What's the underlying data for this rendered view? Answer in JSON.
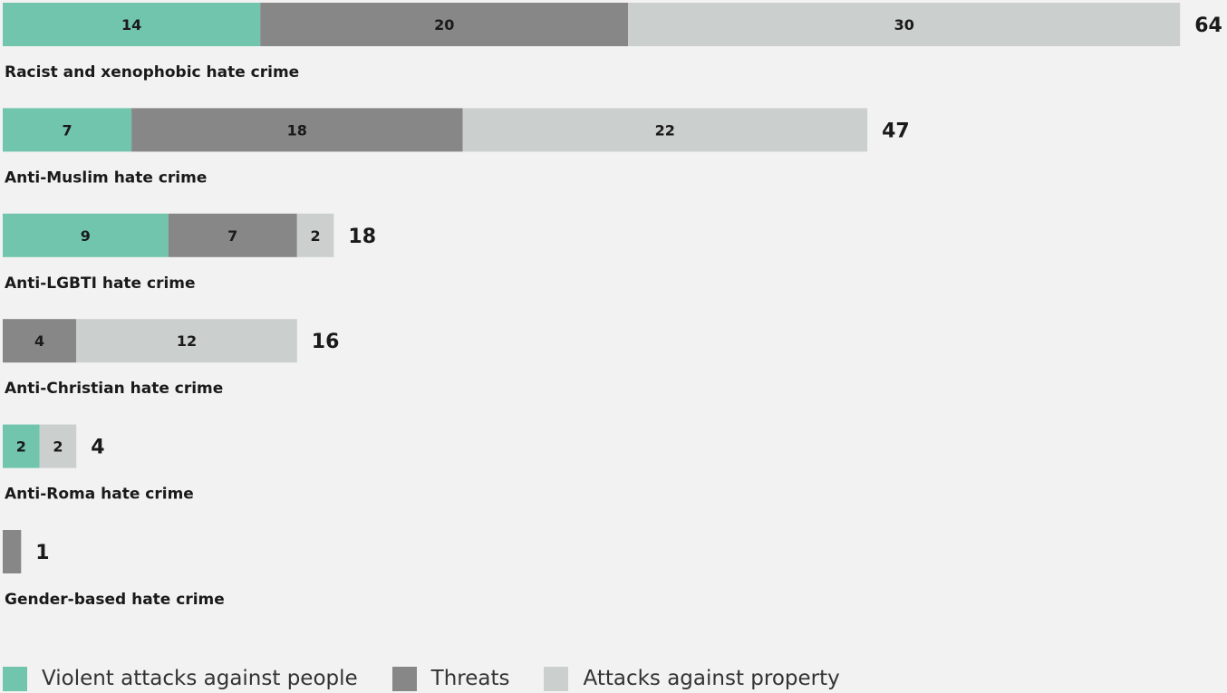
{
  "chart_data": {
    "type": "bar",
    "orientation": "horizontal",
    "stacked": true,
    "categories": [
      "Racist and xenophobic hate crime",
      "Anti-Muslim hate crime",
      "Anti-LGBTI hate crime",
      "Anti-Christian hate crime",
      "Anti-Roma hate crime",
      "Gender-based hate crime"
    ],
    "series": [
      {
        "name": "Violent attacks against people",
        "color": "#70c5ac",
        "values": [
          14,
          7,
          9,
          0,
          2,
          0
        ]
      },
      {
        "name": "Threats",
        "color": "#878787",
        "values": [
          20,
          18,
          7,
          4,
          0,
          1
        ]
      },
      {
        "name": "Attacks against property",
        "color": "#cbcfce",
        "values": [
          30,
          22,
          2,
          12,
          2,
          0
        ]
      }
    ],
    "totals": [
      64,
      47,
      18,
      16,
      4,
      1
    ],
    "legend_position": "bottom-left",
    "grid": false
  }
}
